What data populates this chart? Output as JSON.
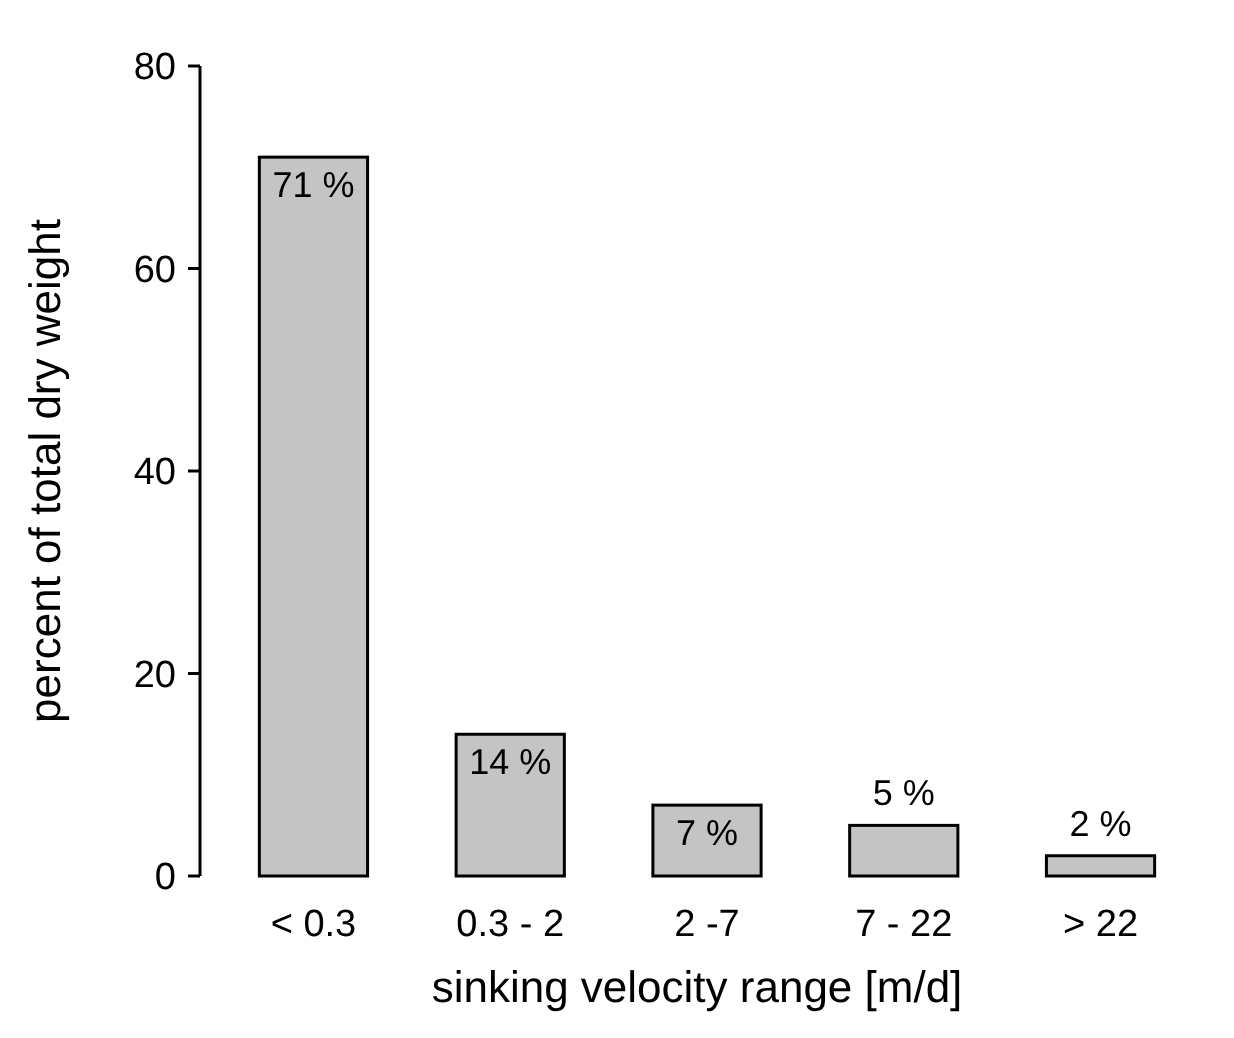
{
  "chart_data": {
    "type": "bar",
    "xlabel": "sinking velocity range [m/d]",
    "ylabel": "percent of total dry weight",
    "categories": [
      "< 0.3",
      "0.3 - 2",
      "2 -7",
      "7 - 22",
      "> 22"
    ],
    "values": [
      71,
      14,
      7,
      5,
      2
    ],
    "value_labels": [
      "71 %",
      "14 %",
      "7 %",
      "5 %",
      "2 %"
    ],
    "color": "#c4c4c4",
    "ylim": [
      0,
      80
    ],
    "yticks": [
      0,
      20,
      40,
      60,
      80
    ],
    "grid": false
  }
}
